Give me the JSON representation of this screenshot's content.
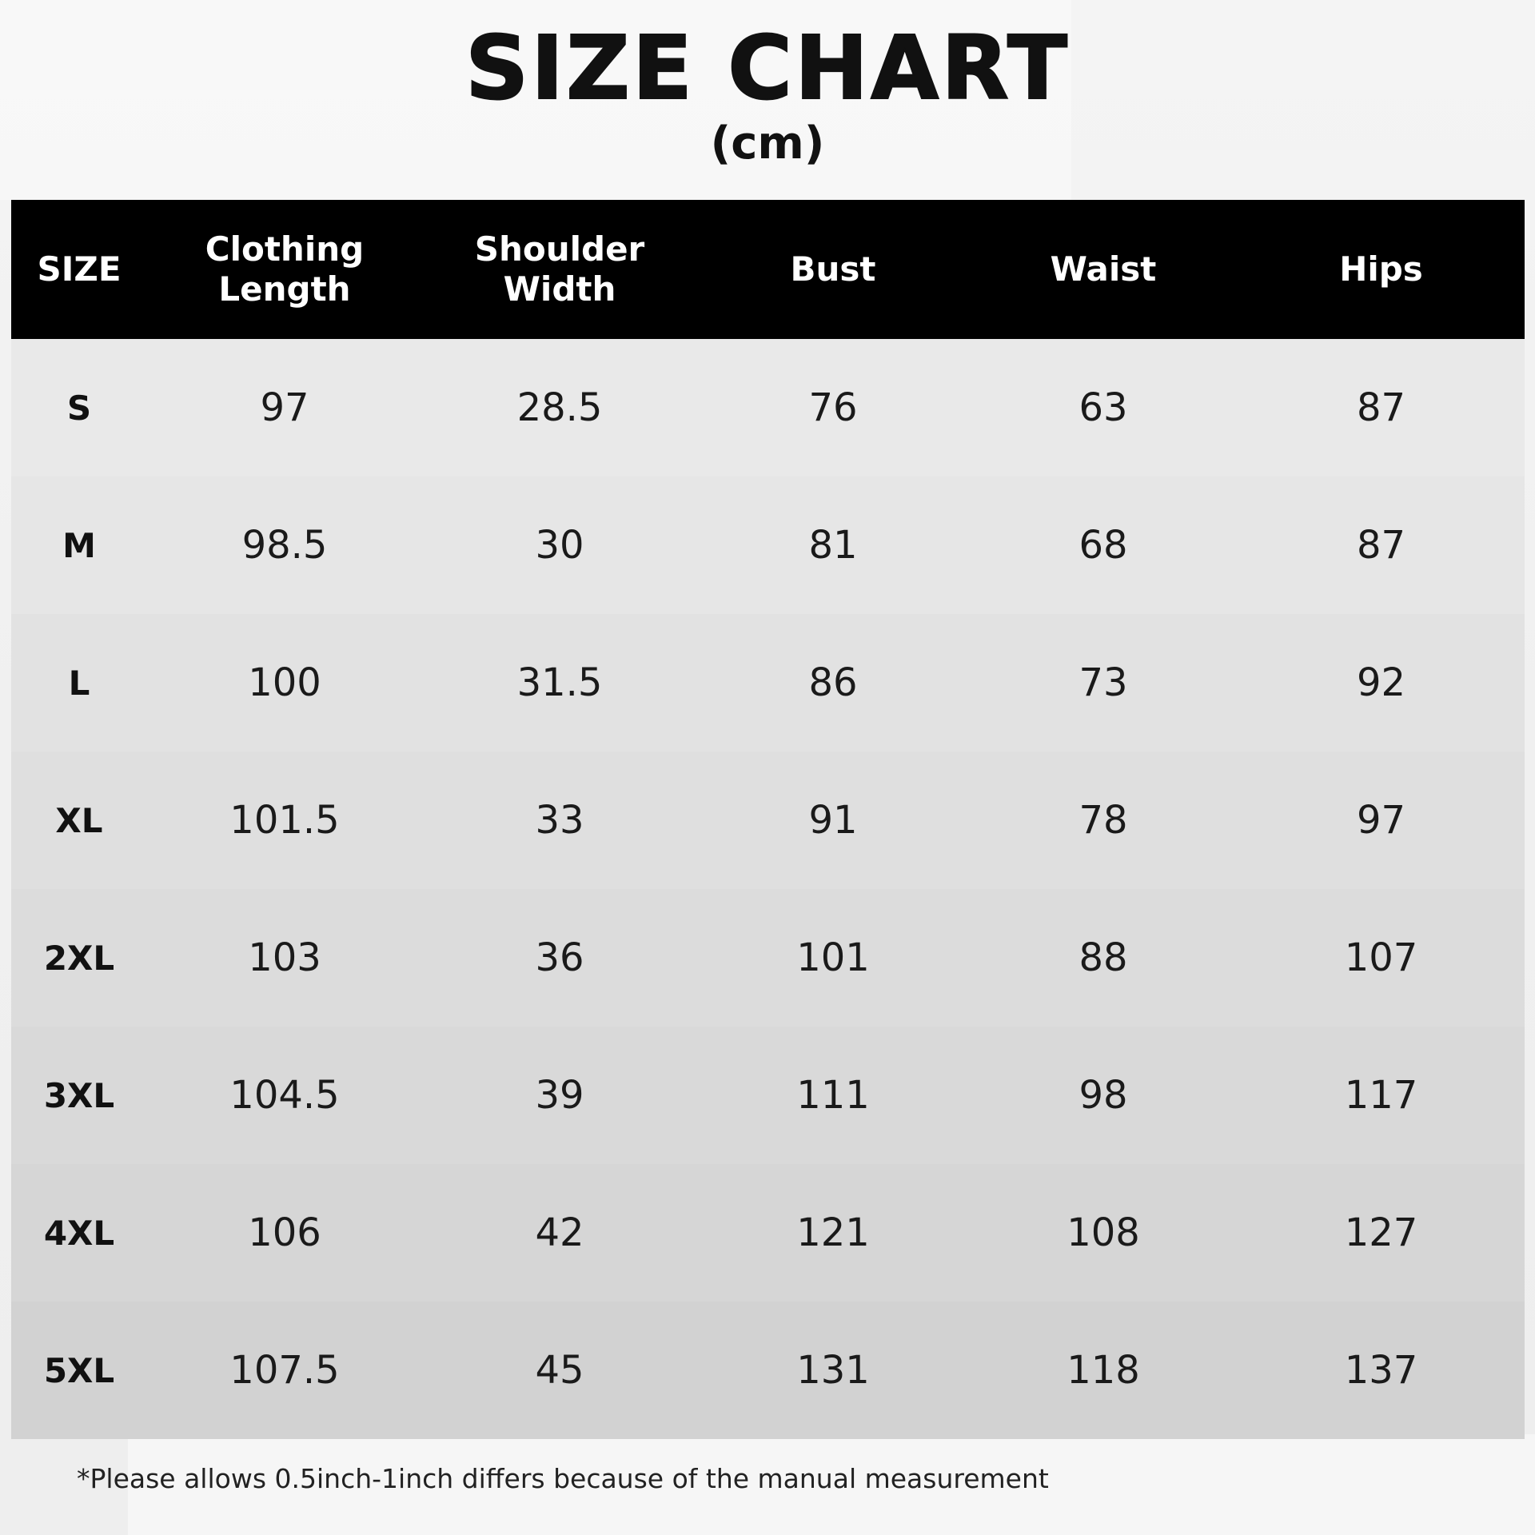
{
  "title": "SIZE CHART",
  "unit": "(cm)",
  "table": {
    "headers": [
      "SIZE",
      "Clothing\nLength",
      "Shoulder\nWidth",
      "Bust",
      "Waist",
      "Hips"
    ],
    "rows": [
      [
        "S",
        "97",
        "28.5",
        "76",
        "63",
        "87"
      ],
      [
        "M",
        "98.5",
        "30",
        "81",
        "68",
        "87"
      ],
      [
        "L",
        "100",
        "31.5",
        "86",
        "73",
        "92"
      ],
      [
        "XL",
        "101.5",
        "33",
        "91",
        "78",
        "97"
      ],
      [
        "2XL",
        "103",
        "36",
        "101",
        "88",
        "107"
      ],
      [
        "3XL",
        "104.5",
        "39",
        "111",
        "98",
        "117"
      ],
      [
        "4XL",
        "106",
        "42",
        "121",
        "108",
        "127"
      ],
      [
        "5XL",
        "107.5",
        "45",
        "131",
        "118",
        "137"
      ]
    ],
    "row_colors": [
      "#e9e9e9",
      "#e6e6e6",
      "#e2e2e2",
      "#dfdfdf",
      "#dcdcdc",
      "#d9d9d9",
      "#d6d6d6",
      "#d2d2d2"
    ]
  },
  "note": "*Please allows 0.5inch-1inch differs because of the manual measurement"
}
